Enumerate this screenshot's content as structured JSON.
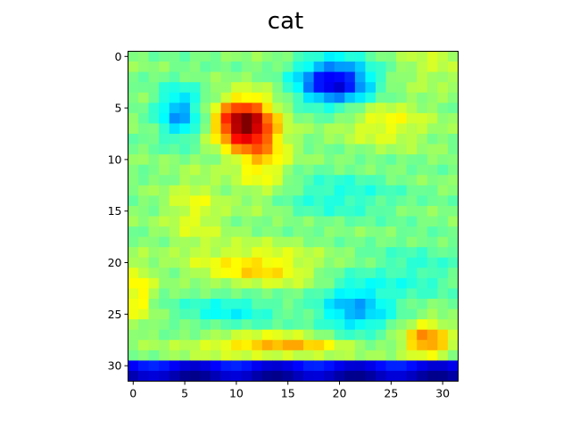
{
  "chart_data": {
    "type": "heatmap",
    "title": "cat",
    "xlabel": "",
    "ylabel": "",
    "rows": 32,
    "cols": 32,
    "value_range": [
      0,
      1
    ],
    "colormap": "jet",
    "xlim": [
      -0.5,
      31.5
    ],
    "ylim": [
      31.5,
      -0.5
    ],
    "x_ticks": [
      0,
      5,
      10,
      15,
      20,
      25,
      30
    ],
    "y_ticks": [
      0,
      5,
      10,
      15,
      20,
      25,
      30
    ],
    "x_tick_labels": [
      "0",
      "5",
      "10",
      "15",
      "20",
      "25",
      "30"
    ],
    "y_tick_labels": [
      "0",
      "5",
      "10",
      "15",
      "20",
      "25",
      "30"
    ],
    "baseline": 0.5,
    "features": [
      {
        "row": 6.5,
        "col": 10.5,
        "sigma_r": 1.6,
        "sigma_c": 1.8,
        "amp": 0.45
      },
      {
        "row": 9.0,
        "col": 12.5,
        "sigma_r": 3.0,
        "sigma_c": 1.8,
        "amp": 0.18
      },
      {
        "row": 2.5,
        "col": 19.5,
        "sigma_r": 1.5,
        "sigma_c": 2.5,
        "amp": -0.42
      },
      {
        "row": 5.5,
        "col": 4.5,
        "sigma_r": 1.8,
        "sigma_c": 1.5,
        "amp": -0.22
      },
      {
        "row": 20.5,
        "col": 12.0,
        "sigma_r": 1.5,
        "sigma_c": 4.0,
        "amp": 0.16
      },
      {
        "row": 28.0,
        "col": 14.0,
        "sigma_r": 0.8,
        "sigma_c": 5.5,
        "amp": 0.2
      },
      {
        "row": 27.5,
        "col": 28.5,
        "sigma_r": 1.3,
        "sigma_c": 1.6,
        "amp": 0.24
      },
      {
        "row": 24.5,
        "col": 21.5,
        "sigma_r": 2.0,
        "sigma_c": 2.5,
        "amp": -0.2
      },
      {
        "row": 24.5,
        "col": 9.5,
        "sigma_r": 1.3,
        "sigma_c": 3.5,
        "amp": -0.12
      },
      {
        "row": 6.5,
        "col": 24.5,
        "sigma_r": 1.5,
        "sigma_c": 3.0,
        "amp": 0.12
      },
      {
        "row": 13.5,
        "col": 20.0,
        "sigma_r": 1.5,
        "sigma_c": 4.0,
        "amp": -0.1
      },
      {
        "row": 15.0,
        "col": 6.0,
        "sigma_r": 2.5,
        "sigma_c": 2.0,
        "amp": 0.1
      },
      {
        "row": 23.0,
        "col": 0.5,
        "sigma_r": 2.0,
        "sigma_c": 1.0,
        "amp": 0.15
      },
      {
        "row": 21.0,
        "col": 27.5,
        "sigma_r": 2.0,
        "sigma_c": 3.0,
        "amp": -0.08
      },
      {
        "row": 1.0,
        "col": 29.0,
        "sigma_r": 1.5,
        "sigma_c": 2.5,
        "amp": 0.07
      }
    ],
    "bottom_band": [
      {
        "row": 30,
        "value": 0.12
      },
      {
        "row": 31,
        "value": 0.05
      }
    ]
  }
}
